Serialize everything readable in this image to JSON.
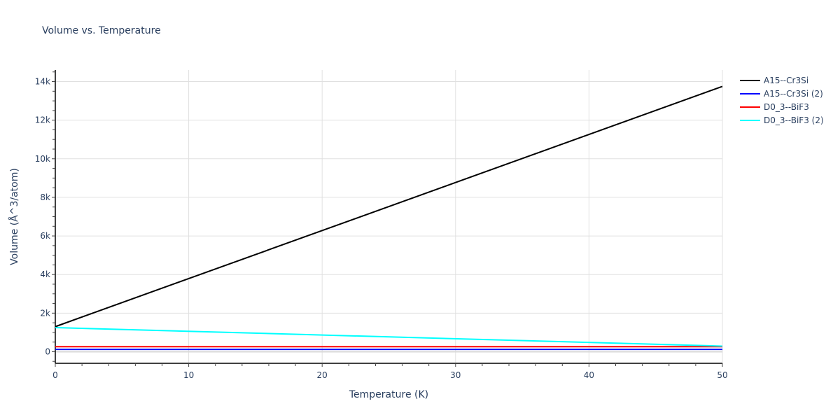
{
  "title": "Volume vs. Temperature",
  "chart_data": {
    "type": "line",
    "title": "Volume vs. Temperature",
    "xlabel": "Temperature (K)",
    "ylabel": "Volume (Å^3/atom)",
    "xlim": [
      0,
      50
    ],
    "ylim": [
      -600,
      14600
    ],
    "x_ticks": [
      "0",
      "10",
      "20",
      "30",
      "40",
      "50"
    ],
    "y_ticks": [
      "0",
      "2k",
      "4k",
      "6k",
      "8k",
      "10k",
      "12k",
      "14k"
    ],
    "grid": true,
    "legend_position": "right",
    "x": [
      0,
      50
    ],
    "series": [
      {
        "name": "A15--Cr3Si",
        "color": "#000000",
        "values": [
          1300,
          13750
        ]
      },
      {
        "name": "A15--Cr3Si (2)",
        "color": "#0000ff",
        "values": [
          120,
          120
        ]
      },
      {
        "name": "D0_3--BiF3",
        "color": "#ff0000",
        "values": [
          260,
          260
        ]
      },
      {
        "name": "D0_3--BiF3 (2)",
        "color": "#00ffff",
        "values": [
          1250,
          290
        ]
      }
    ]
  }
}
